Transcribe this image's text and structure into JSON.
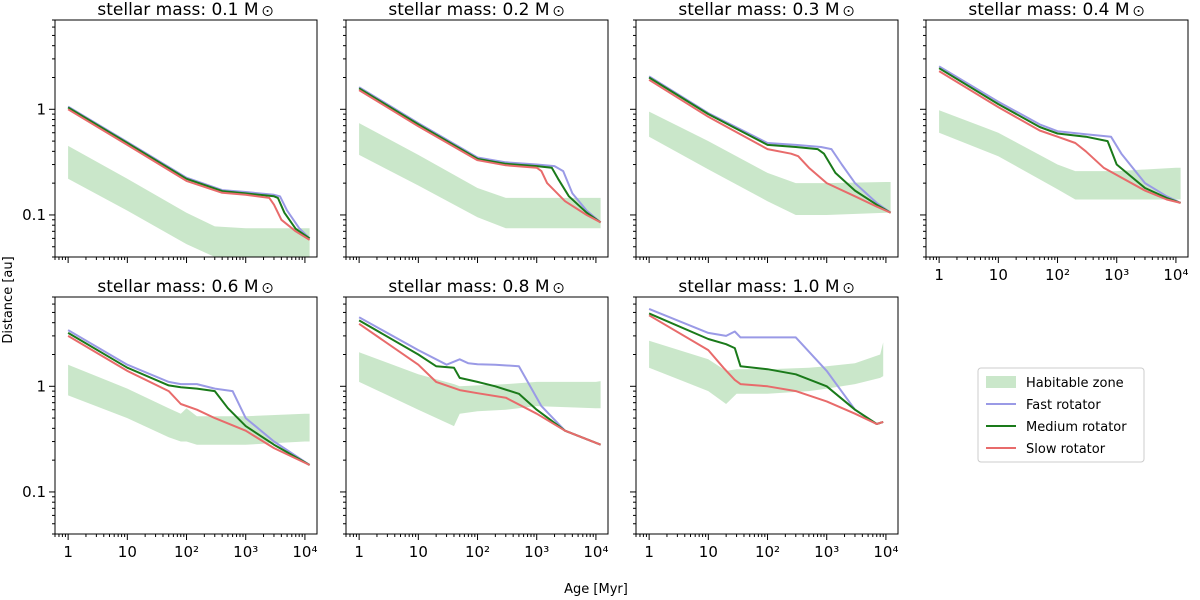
{
  "chart_data": {
    "type": "line",
    "xlabel": "Age [Myr]",
    "ylabel": "Distance [au]",
    "xscale": "log",
    "yscale": "log",
    "xlim": [
      0.6,
      16000
    ],
    "ylim": [
      0.04,
      7
    ],
    "x_ticks": [
      {
        "value": 1,
        "label": "1"
      },
      {
        "value": 10,
        "label": "10"
      },
      {
        "value": 100,
        "label": "10²"
      },
      {
        "value": 1000,
        "label": "10³"
      },
      {
        "value": 10000,
        "label": "10⁴"
      }
    ],
    "y_ticks": [
      {
        "value": 1,
        "label": "1"
      },
      {
        "value": 0.1,
        "label": "0.1"
      }
    ],
    "legend": {
      "position": "lower-right",
      "entries": [
        {
          "label": "Habitable zone",
          "color": "#a9d9a9",
          "kind": "band"
        },
        {
          "label": "Fast rotator",
          "color": "#9a9ae6",
          "kind": "line"
        },
        {
          "label": "Medium rotator",
          "color": "#1a7a1a",
          "kind": "line"
        },
        {
          "label": "Slow rotator",
          "color": "#e86b6b",
          "kind": "line"
        }
      ]
    },
    "panels": [
      {
        "title": "stellar mass: 0.1 M",
        "hz": {
          "x": [
            1,
            10,
            100,
            300,
            1000,
            10000,
            12000
          ],
          "lower": [
            0.22,
            0.11,
            0.053,
            0.04,
            0.04,
            0.04,
            0.04
          ],
          "upper": [
            0.45,
            0.22,
            0.105,
            0.078,
            0.075,
            0.075,
            0.075
          ]
        },
        "series": [
          {
            "name": "Fast rotator",
            "x": [
              1,
              10,
              100,
              400,
              1000,
              3000,
              3800,
              5000,
              8000,
              12000
            ],
            "y": [
              1.06,
              0.49,
              0.225,
              0.172,
              0.165,
              0.155,
              0.15,
              0.11,
              0.075,
              0.06
            ]
          },
          {
            "name": "Medium rotator",
            "x": [
              1,
              10,
              100,
              400,
              1000,
              3000,
              3500,
              4500,
              7000,
              12000
            ],
            "y": [
              1.04,
              0.48,
              0.22,
              0.168,
              0.16,
              0.15,
              0.145,
              0.105,
              0.074,
              0.06
            ]
          },
          {
            "name": "Slow rotator",
            "x": [
              1,
              10,
              100,
              400,
              1000,
              2500,
              3000,
              4000,
              7000,
              12000
            ],
            "y": [
              1.0,
              0.46,
              0.21,
              0.162,
              0.155,
              0.145,
              0.125,
              0.09,
              0.07,
              0.058
            ]
          }
        ]
      },
      {
        "title": "stellar mass: 0.2 M",
        "hz": {
          "x": [
            1,
            10,
            100,
            300,
            1000,
            10000,
            12000
          ],
          "lower": [
            0.37,
            0.19,
            0.095,
            0.075,
            0.075,
            0.075,
            0.075
          ],
          "upper": [
            0.74,
            0.37,
            0.18,
            0.145,
            0.145,
            0.145,
            0.145
          ]
        },
        "series": [
          {
            "name": "Fast rotator",
            "x": [
              1,
              10,
              100,
              300,
              1000,
              2000,
              2800,
              4000,
              7000,
              12000
            ],
            "y": [
              1.62,
              0.74,
              0.35,
              0.315,
              0.3,
              0.29,
              0.26,
              0.16,
              0.11,
              0.085
            ]
          },
          {
            "name": "Medium rotator",
            "x": [
              1,
              10,
              100,
              300,
              1000,
              1800,
              2300,
              3500,
              7000,
              12000
            ],
            "y": [
              1.58,
              0.72,
              0.34,
              0.305,
              0.29,
              0.28,
              0.22,
              0.15,
              0.105,
              0.085
            ]
          },
          {
            "name": "Slow rotator",
            "x": [
              1,
              10,
              100,
              300,
              1000,
              1200,
              1500,
              3000,
              7000,
              12000
            ],
            "y": [
              1.52,
              0.69,
              0.33,
              0.295,
              0.28,
              0.26,
              0.2,
              0.135,
              0.1,
              0.085
            ]
          }
        ]
      },
      {
        "title": "stellar mass: 0.3 M",
        "hz": {
          "x": [
            1,
            10,
            100,
            300,
            1000,
            10000,
            12000
          ],
          "lower": [
            0.55,
            0.27,
            0.135,
            0.1,
            0.1,
            0.105,
            0.105
          ],
          "upper": [
            0.95,
            0.5,
            0.25,
            0.2,
            0.2,
            0.205,
            0.205
          ]
        },
        "series": [
          {
            "name": "Fast rotator",
            "x": [
              1,
              10,
              100,
              300,
              800,
              1200,
              1800,
              3000,
              7000,
              12000
            ],
            "y": [
              2.05,
              0.92,
              0.48,
              0.46,
              0.44,
              0.42,
              0.3,
              0.2,
              0.13,
              0.105
            ]
          },
          {
            "name": "Medium rotator",
            "x": [
              1,
              10,
              100,
              300,
              700,
              900,
              1400,
              3000,
              7000,
              12000
            ],
            "y": [
              2.0,
              0.9,
              0.46,
              0.44,
              0.42,
              0.38,
              0.25,
              0.17,
              0.125,
              0.105
            ]
          },
          {
            "name": "Slow rotator",
            "x": [
              1,
              10,
              100,
              250,
              330,
              500,
              1000,
              3000,
              7000,
              12000
            ],
            "y": [
              1.9,
              0.85,
              0.42,
              0.38,
              0.36,
              0.28,
              0.2,
              0.15,
              0.12,
              0.105
            ]
          }
        ]
      },
      {
        "title": "stellar mass: 0.4 M",
        "hz": {
          "x": [
            1,
            10,
            100,
            200,
            1000,
            10000,
            12000
          ],
          "lower": [
            0.6,
            0.36,
            0.175,
            0.14,
            0.14,
            0.14,
            0.14
          ],
          "upper": [
            0.98,
            0.6,
            0.3,
            0.26,
            0.26,
            0.28,
            0.28
          ]
        },
        "series": [
          {
            "name": "Fast rotator",
            "x": [
              1,
              10,
              50,
              100,
              300,
              800,
              1200,
              3000,
              7000,
              12000
            ],
            "y": [
              2.55,
              1.18,
              0.72,
              0.62,
              0.58,
              0.55,
              0.38,
              0.2,
              0.15,
              0.13
            ]
          },
          {
            "name": "Medium rotator",
            "x": [
              1,
              10,
              50,
              100,
              300,
              700,
              1000,
              3000,
              7000,
              12000
            ],
            "y": [
              2.45,
              1.12,
              0.68,
              0.59,
              0.55,
              0.5,
              0.3,
              0.18,
              0.145,
              0.13
            ]
          },
          {
            "name": "Slow rotator",
            "x": [
              1,
              10,
              50,
              100,
              200,
              300,
              600,
              3000,
              7000,
              12000
            ],
            "y": [
              2.3,
              1.05,
              0.63,
              0.55,
              0.48,
              0.4,
              0.28,
              0.17,
              0.14,
              0.13
            ]
          }
        ]
      },
      {
        "title": "stellar mass: 0.6 M",
        "hz": {
          "x": [
            1,
            10,
            50,
            80,
            100,
            150,
            1000,
            10000,
            12000
          ],
          "lower": [
            0.82,
            0.5,
            0.33,
            0.3,
            0.3,
            0.28,
            0.28,
            0.3,
            0.3
          ],
          "upper": [
            1.6,
            0.95,
            0.62,
            0.55,
            0.62,
            0.52,
            0.52,
            0.55,
            0.55
          ]
        },
        "series": [
          {
            "name": "Fast rotator",
            "x": [
              1,
              10,
              50,
              80,
              150,
              300,
              600,
              1000,
              3000,
              12000
            ],
            "y": [
              3.4,
              1.6,
              1.1,
              1.05,
              1.05,
              0.95,
              0.9,
              0.5,
              0.3,
              0.18
            ]
          },
          {
            "name": "Medium rotator",
            "x": [
              1,
              10,
              50,
              80,
              150,
              300,
              500,
              1000,
              3000,
              12000
            ],
            "y": [
              3.2,
              1.5,
              1.02,
              0.98,
              0.95,
              0.9,
              0.62,
              0.42,
              0.28,
              0.18
            ]
          },
          {
            "name": "Slow rotator",
            "x": [
              1,
              10,
              50,
              80,
              150,
              300,
              1000,
              3000,
              12000
            ],
            "y": [
              3.0,
              1.4,
              0.9,
              0.68,
              0.6,
              0.5,
              0.38,
              0.26,
              0.18
            ]
          }
        ]
      },
      {
        "title": "stellar mass: 0.8 M",
        "hz": {
          "x": [
            1,
            10,
            40,
            50,
            100,
            300,
            1000,
            10000,
            12000
          ],
          "lower": [
            1.1,
            0.6,
            0.42,
            0.55,
            0.58,
            0.6,
            0.65,
            0.62,
            0.62
          ],
          "upper": [
            2.1,
            1.3,
            1.05,
            1.0,
            1.02,
            1.05,
            1.1,
            1.1,
            1.12
          ]
        },
        "series": [
          {
            "name": "Fast rotator",
            "x": [
              1,
              10,
              30,
              50,
              70,
              100,
              200,
              500,
              1200,
              3000,
              12000
            ],
            "y": [
              4.5,
              2.2,
              1.6,
              1.8,
              1.65,
              1.62,
              1.6,
              1.55,
              0.65,
              0.38,
              0.28
            ]
          },
          {
            "name": "Medium rotator",
            "x": [
              1,
              10,
              20,
              40,
              50,
              100,
              200,
              500,
              1000,
              3000,
              12000
            ],
            "y": [
              4.2,
              2.0,
              1.55,
              1.5,
              1.2,
              1.1,
              1.0,
              0.85,
              0.6,
              0.38,
              0.28
            ]
          },
          {
            "name": "Slow rotator",
            "x": [
              1,
              10,
              20,
              50,
              100,
              300,
              1000,
              3000,
              12000
            ],
            "y": [
              3.9,
              1.6,
              1.1,
              0.92,
              0.86,
              0.78,
              0.55,
              0.38,
              0.28
            ]
          }
        ]
      },
      {
        "title": "stellar mass: 1.0 M",
        "hz": {
          "x": [
            1,
            10,
            20,
            30,
            100,
            500,
            1000,
            3000,
            8000,
            9000
          ],
          "lower": [
            1.5,
            0.9,
            0.68,
            0.85,
            0.85,
            0.9,
            0.95,
            1.05,
            1.2,
            1.25
          ],
          "upper": [
            2.7,
            1.8,
            1.4,
            1.45,
            1.45,
            1.5,
            1.55,
            1.65,
            2.0,
            2.6
          ]
        },
        "series": [
          {
            "name": "Fast rotator",
            "x": [
              1,
              10,
              20,
              28,
              35,
              100,
              300,
              1000,
              3000,
              7000,
              9000
            ],
            "y": [
              5.4,
              3.2,
              3.0,
              3.3,
              2.9,
              2.9,
              2.9,
              1.4,
              0.6,
              0.44,
              0.46
            ]
          },
          {
            "name": "Medium rotator",
            "x": [
              1,
              10,
              20,
              28,
              35,
              100,
              300,
              1000,
              3000,
              7000,
              9000
            ],
            "y": [
              4.9,
              2.8,
              2.5,
              2.3,
              1.55,
              1.45,
              1.3,
              1.0,
              0.6,
              0.44,
              0.46
            ]
          },
          {
            "name": "Slow rotator",
            "x": [
              1,
              10,
              18,
              28,
              35,
              100,
              300,
              1000,
              3000,
              7000,
              9000
            ],
            "y": [
              4.7,
              2.2,
              1.5,
              1.15,
              1.05,
              1.0,
              0.9,
              0.72,
              0.55,
              0.44,
              0.46
            ]
          }
        ]
      }
    ]
  }
}
